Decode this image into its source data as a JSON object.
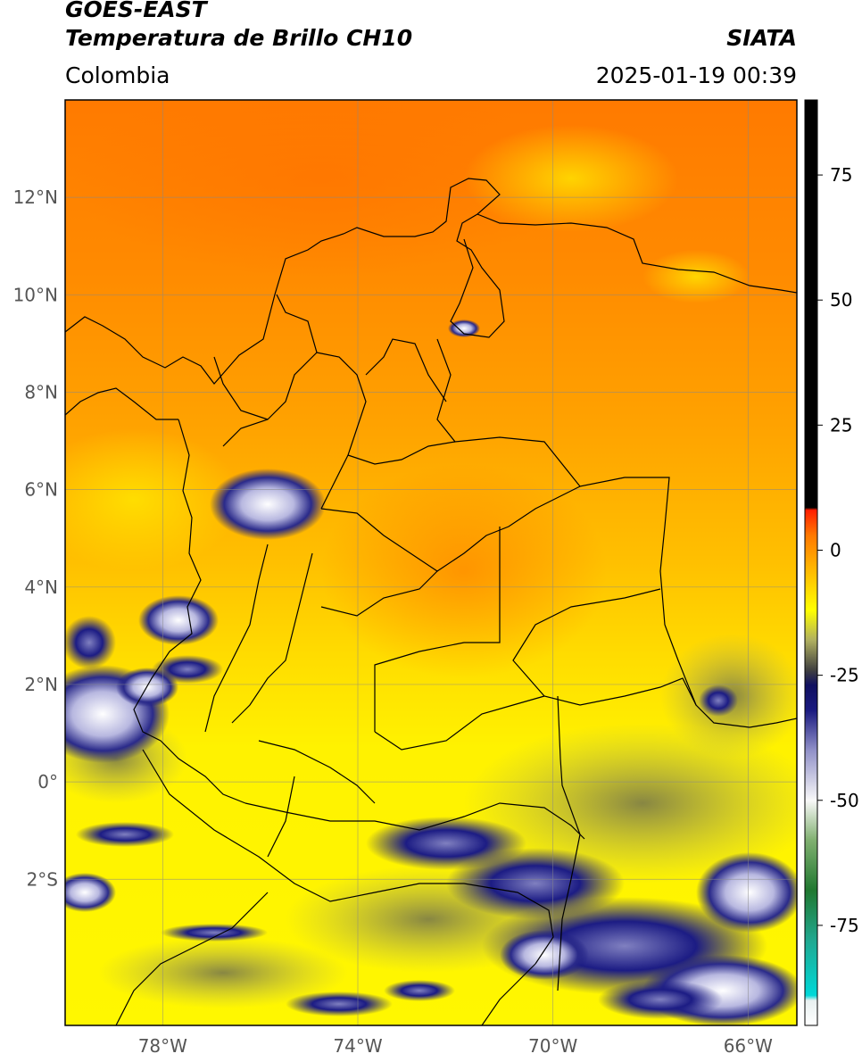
{
  "header": {
    "satellite": "GOES-EAST",
    "product": "Temperatura de Brillo CH10",
    "region": "Colombia",
    "agency": "SIATA",
    "datetime": "2025-01-19 00:39"
  },
  "map": {
    "lon_range": [
      -80,
      -65
    ],
    "lat_range": [
      -5,
      14
    ],
    "lat_ticks": [
      {
        "value": 12,
        "label": "12°N"
      },
      {
        "value": 10,
        "label": "10°N"
      },
      {
        "value": 8,
        "label": "8°N"
      },
      {
        "value": 6,
        "label": "6°N"
      },
      {
        "value": 4,
        "label": "4°N"
      },
      {
        "value": 2,
        "label": "2°N"
      },
      {
        "value": 0,
        "label": "0°"
      },
      {
        "value": -2,
        "label": "2°S"
      }
    ],
    "lon_ticks": [
      {
        "value": -78,
        "label": "78°W"
      },
      {
        "value": -74,
        "label": "74°W"
      },
      {
        "value": -70,
        "label": "70°W"
      },
      {
        "value": -66,
        "label": "66°W"
      }
    ]
  },
  "colorbar": {
    "range": [
      -95,
      90
    ],
    "ticks": [
      {
        "value": 75,
        "label": "75"
      },
      {
        "value": 50,
        "label": "50"
      },
      {
        "value": 25,
        "label": "25"
      },
      {
        "value": 0,
        "label": "0"
      },
      {
        "value": -25,
        "label": "-25"
      },
      {
        "value": -50,
        "label": "-50"
      },
      {
        "value": -75,
        "label": "-75"
      }
    ],
    "stops": [
      {
        "value": -95,
        "color": "#ffffff"
      },
      {
        "value": -90,
        "color": "#e8f0f0"
      },
      {
        "value": -89,
        "color": "#00d8d8"
      },
      {
        "value": -78,
        "color": "#20a890"
      },
      {
        "value": -68,
        "color": "#207830"
      },
      {
        "value": -58,
        "color": "#80b070"
      },
      {
        "value": -50,
        "color": "#f8f8f8"
      },
      {
        "value": -40,
        "color": "#9090c8"
      },
      {
        "value": -32,
        "color": "#1a1a80"
      },
      {
        "value": -27,
        "color": "#101060"
      },
      {
        "value": -24,
        "color": "#404040"
      },
      {
        "value": -18,
        "color": "#b0b060"
      },
      {
        "value": -12,
        "color": "#ffff00"
      },
      {
        "value": -3,
        "color": "#ffb000"
      },
      {
        "value": 3,
        "color": "#ff7800"
      },
      {
        "value": 8,
        "color": "#ff1e00"
      },
      {
        "value": 8.5,
        "color": "#000000"
      },
      {
        "value": 90,
        "color": "#000000"
      }
    ]
  }
}
